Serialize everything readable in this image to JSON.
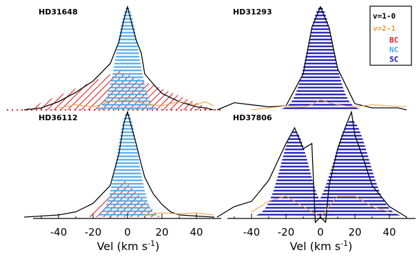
{
  "colors": {
    "v10": "#000000",
    "v21": "#f2a03c",
    "BC": "#e31a1c",
    "NC": "#4fa8e8",
    "SC": "#1010b0"
  },
  "panels": [
    {
      "label": "HD31648"
    },
    {
      "label": "HD31293"
    },
    {
      "label": "HD36112"
    },
    {
      "label": "HD37806"
    }
  ],
  "legend": {
    "entries": [
      {
        "text": "v=1-0",
        "color": "#000000"
      },
      {
        "text": "v=2-1",
        "color": "#f2a03c"
      },
      {
        "text": "BC",
        "color": "#e31a1c"
      },
      {
        "text": "NC",
        "color": "#4fa8e8"
      },
      {
        "text": "SC",
        "color": "#1010b0"
      }
    ]
  },
  "xaxis": {
    "label_prefix": "Vel (km s",
    "label_exp": "-1",
    "label_suffix": ")",
    "ticks": [
      "-40",
      "-20",
      "0",
      "20",
      "40"
    ]
  },
  "chart_data": [
    {
      "type": "area",
      "panel": "HD31648",
      "xlabel": "Vel (km s-1)",
      "xlim": [
        -60,
        60
      ],
      "components": {
        "NC": {
          "center": 0,
          "sigma": 6,
          "peak": 1.0
        },
        "BC": {
          "center": -5,
          "half_width": 55,
          "peak": 0.38
        }
      },
      "series": [
        {
          "name": "v=1-0",
          "x": [
            -60,
            -50,
            -40,
            -30,
            -20,
            -10,
            -5,
            -2,
            0,
            2,
            5,
            8,
            10,
            15,
            20,
            30,
            40,
            45,
            50
          ],
          "y": [
            0.0,
            0.02,
            0.08,
            0.17,
            0.28,
            0.45,
            0.66,
            0.88,
            1.0,
            0.87,
            0.68,
            0.55,
            0.35,
            0.25,
            0.16,
            0.08,
            0.03,
            0.02,
            0.0
          ]
        },
        {
          "name": "v=2-1",
          "x": [
            -40,
            -30,
            -20,
            -10,
            0,
            10,
            20,
            30,
            40,
            45,
            50
          ],
          "y": [
            0.02,
            0.05,
            0.03,
            0.08,
            0.1,
            0.06,
            0.04,
            0.08,
            0.05,
            0.08,
            0.04
          ]
        }
      ]
    },
    {
      "type": "area",
      "panel": "HD31293",
      "xlabel": "Vel (km s-1)",
      "xlim": [
        -60,
        60
      ],
      "components": {
        "SC": {
          "center": 0,
          "sigma": 7.5,
          "peak": 1.0
        }
      },
      "series": [
        {
          "name": "v=1-0",
          "x": [
            -60,
            -50,
            -30,
            -20,
            -10,
            -5,
            0,
            5,
            10,
            20,
            30,
            45,
            50
          ],
          "y": [
            0.0,
            0.07,
            0.03,
            0.04,
            0.35,
            0.8,
            1.0,
            0.8,
            0.4,
            0.06,
            0.02,
            0.02,
            0.0
          ]
        },
        {
          "name": "v=2-1",
          "x": [
            -40,
            -30,
            -20,
            -10,
            -5,
            0,
            5,
            10,
            20,
            30,
            40,
            50
          ],
          "y": [
            0.0,
            0.02,
            0.04,
            0.03,
            0.05,
            0.1,
            0.07,
            0.05,
            0.03,
            0.05,
            0.04,
            0.03
          ]
        }
      ]
    },
    {
      "type": "area",
      "panel": "HD36112",
      "xlabel": "Vel (km s-1)",
      "xlim": [
        -60,
        60
      ],
      "components": {
        "NC": {
          "center": 0,
          "sigma": 6,
          "peak": 1.0
        },
        "BC": {
          "center": -3,
          "half_width": 22,
          "peak": 0.37
        }
      },
      "series": [
        {
          "name": "v=1-0",
          "x": [
            -60,
            -40,
            -30,
            -20,
            -10,
            -5,
            -2,
            0,
            2,
            5,
            8,
            10,
            15,
            20,
            25,
            30,
            40,
            50
          ],
          "y": [
            0.0,
            0.02,
            0.05,
            0.13,
            0.3,
            0.6,
            0.9,
            1.0,
            0.88,
            0.7,
            0.5,
            0.38,
            0.22,
            0.12,
            0.05,
            0.02,
            0.01,
            0.0
          ]
        },
        {
          "name": "v=2-1",
          "x": [
            10,
            20,
            30,
            40,
            50
          ],
          "y": [
            0.02,
            0.04,
            0.03,
            0.04,
            0.02
          ]
        }
      ]
    },
    {
      "type": "area",
      "panel": "HD37806",
      "xlabel": "Vel (km s-1)",
      "xlim": [
        -60,
        60
      ],
      "components": {
        "SC": [
          {
            "center": -15,
            "sigma": 8,
            "peak": 0.82
          },
          {
            "center": 18,
            "sigma": 10,
            "peak": 0.92
          }
        ]
      },
      "series": [
        {
          "name": "v=1-0",
          "x": [
            -60,
            -50,
            -40,
            -30,
            -20,
            -15,
            -10,
            -5,
            -3,
            0,
            3,
            5,
            10,
            15,
            18,
            20,
            25,
            30,
            40,
            50
          ],
          "y": [
            0.0,
            0.1,
            0.15,
            0.35,
            0.7,
            0.85,
            0.65,
            0.7,
            -0.05,
            0.0,
            -0.05,
            0.3,
            0.65,
            0.88,
            1.0,
            0.78,
            0.55,
            0.3,
            0.1,
            0.0
          ]
        },
        {
          "name": "v=2-1",
          "x": [
            -40,
            -30,
            -20,
            -10,
            0,
            10,
            20,
            30,
            40
          ],
          "y": [
            0.05,
            0.15,
            0.2,
            0.1,
            0.0,
            0.2,
            0.2,
            0.1,
            0.05
          ]
        }
      ]
    }
  ]
}
